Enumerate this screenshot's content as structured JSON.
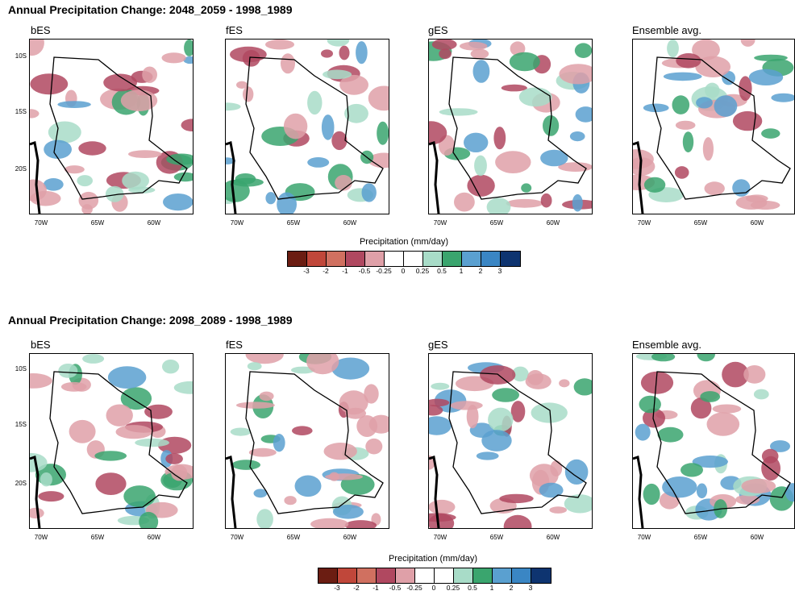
{
  "rows": [
    {
      "title": "Annual Precipitation Change: 2048_2059 - 1998_1989",
      "panels": [
        "bES",
        "fES",
        "gES",
        "Ensemble avg."
      ],
      "colorbar_title": "Precipitation (mm/day)"
    },
    {
      "title": "Annual Precipitation Change: 2098_2089 - 1998_1989",
      "panels": [
        "bES",
        "fES",
        "gES",
        "Ensemble avg."
      ],
      "colorbar_title": "Precipitation (mm/day)"
    }
  ],
  "axes": {
    "x_ticks": [
      "70W",
      "65W",
      "60W"
    ],
    "y_ticks": [
      "10S",
      "15S",
      "20S"
    ]
  },
  "colorbar": {
    "labels": [
      "-3",
      "-2",
      "-1",
      "-0.5",
      "-0.25",
      "0",
      "0.25",
      "0.5",
      "1",
      "2",
      "3"
    ],
    "colors": [
      "#6b1d12",
      "#c0473a",
      "#d07060",
      "#b04860",
      "#dfa0a8",
      "#ffffff",
      "#ffffff",
      "#a8dcc8",
      "#3aa56e",
      "#5aa0d0",
      "#3a86c4",
      "#0e3470"
    ]
  },
  "chart_data": [
    {
      "type": "heatmap",
      "title": "Annual Precipitation Change: 2048_2059 - 1998_1989",
      "subplots": [
        "bES",
        "fES",
        "gES",
        "Ensemble avg."
      ],
      "x_ticks": [
        "70W",
        "65W",
        "60W"
      ],
      "y_ticks": [
        "10S",
        "15S",
        "20S"
      ],
      "colorbar_label": "Precipitation (mm/day)",
      "levels": [
        -3,
        -2,
        -1,
        -0.5,
        -0.25,
        0,
        0.25,
        0.5,
        1,
        2,
        3
      ]
    },
    {
      "type": "heatmap",
      "title": "Annual Precipitation Change: 2098_2089 - 1998_1989",
      "subplots": [
        "bES",
        "fES",
        "gES",
        "Ensemble avg."
      ],
      "x_ticks": [
        "70W",
        "65W",
        "60W"
      ],
      "y_ticks": [
        "10S",
        "15S",
        "20S"
      ],
      "colorbar_label": "Precipitation (mm/day)",
      "levels": [
        -3,
        -2,
        -1,
        -0.5,
        -0.25,
        0,
        0.25,
        0.5,
        1,
        2,
        3
      ]
    }
  ]
}
